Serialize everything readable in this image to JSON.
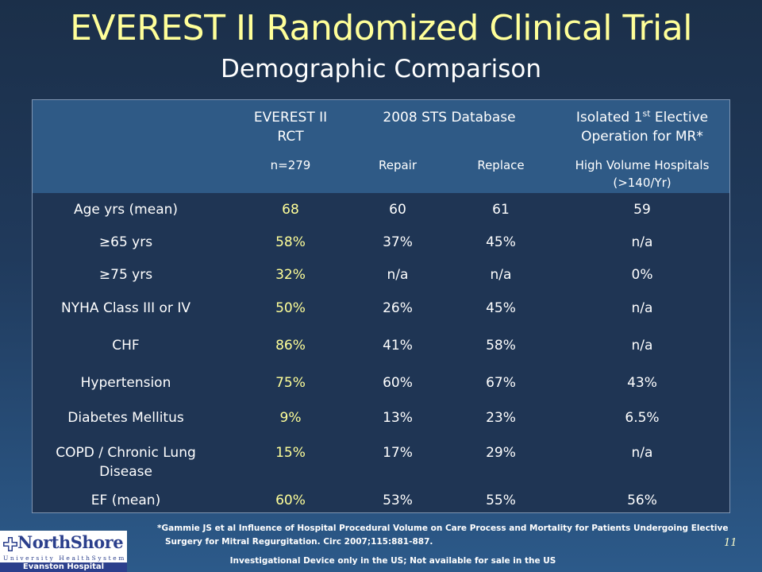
{
  "title": "EVEREST II Randomized Clinical Trial",
  "subtitle": "Demographic Comparison",
  "header": {
    "col1_line1": "EVEREST II",
    "col1_line2": "RCT",
    "col1_n": "n=279",
    "col_sts": "2008 STS Database",
    "col2_sub": "Repair",
    "col3_sub": "Replace",
    "col4_line1_pre": "Isolated 1",
    "col4_line1_sup": "st",
    "col4_line1_post": " Elective",
    "col4_line2": "Operation for MR*",
    "col4_sub_line1": "High Volume Hospitals",
    "col4_sub_line2": "(>140/Yr)"
  },
  "rows": [
    {
      "label": "Age yrs (mean)",
      "rct": "68",
      "repair": "60",
      "replace": "61",
      "hv": "59"
    },
    {
      "label": "≥65 yrs",
      "rct": "58%",
      "repair": "37%",
      "replace": "45%",
      "hv": "n/a"
    },
    {
      "label": "≥75 yrs",
      "rct": "32%",
      "repair": "n/a",
      "replace": "n/a",
      "hv": "0%"
    },
    {
      "label": "NYHA Class III or IV",
      "rct": "50%",
      "repair": "26%",
      "replace": "45%",
      "hv": "n/a"
    },
    {
      "label": "CHF",
      "rct": "86%",
      "repair": "41%",
      "replace": "58%",
      "hv": "n/a"
    },
    {
      "label": "Hypertension",
      "rct": "75%",
      "repair": "60%",
      "replace": "67%",
      "hv": "43%"
    },
    {
      "label": "Diabetes Mellitus",
      "rct": "9%",
      "repair": "13%",
      "replace": "23%",
      "hv": "6.5%"
    },
    {
      "label": "COPD / Chronic Lung",
      "label2": "Disease",
      "rct": "15%",
      "repair": "17%",
      "replace": "29%",
      "hv": "n/a"
    },
    {
      "label": "EF (mean)",
      "rct": "60%",
      "repair": "53%",
      "replace": "55%",
      "hv": "56%"
    }
  ],
  "footnote": {
    "line1": "*Gammie JS et al Influence of Hospital Procedural Volume on Care Process and Mortality for Patients Undergoing Elective",
    "line2": "Surgery for Mitral Regurgitation.  Circ 2007;115:881-887."
  },
  "disclaimer": "Investigational Device only in the US; Not available for sale in the US",
  "page_number": "11",
  "logo": {
    "name": "NorthShore",
    "system": "University HealthSystem",
    "hospital": "Evanston Hospital"
  },
  "colors": {
    "title": "#ffff99",
    "rct_values": "#ffff99",
    "header_band": "#2f5a86",
    "logo_blue": "#2b3f8c"
  }
}
